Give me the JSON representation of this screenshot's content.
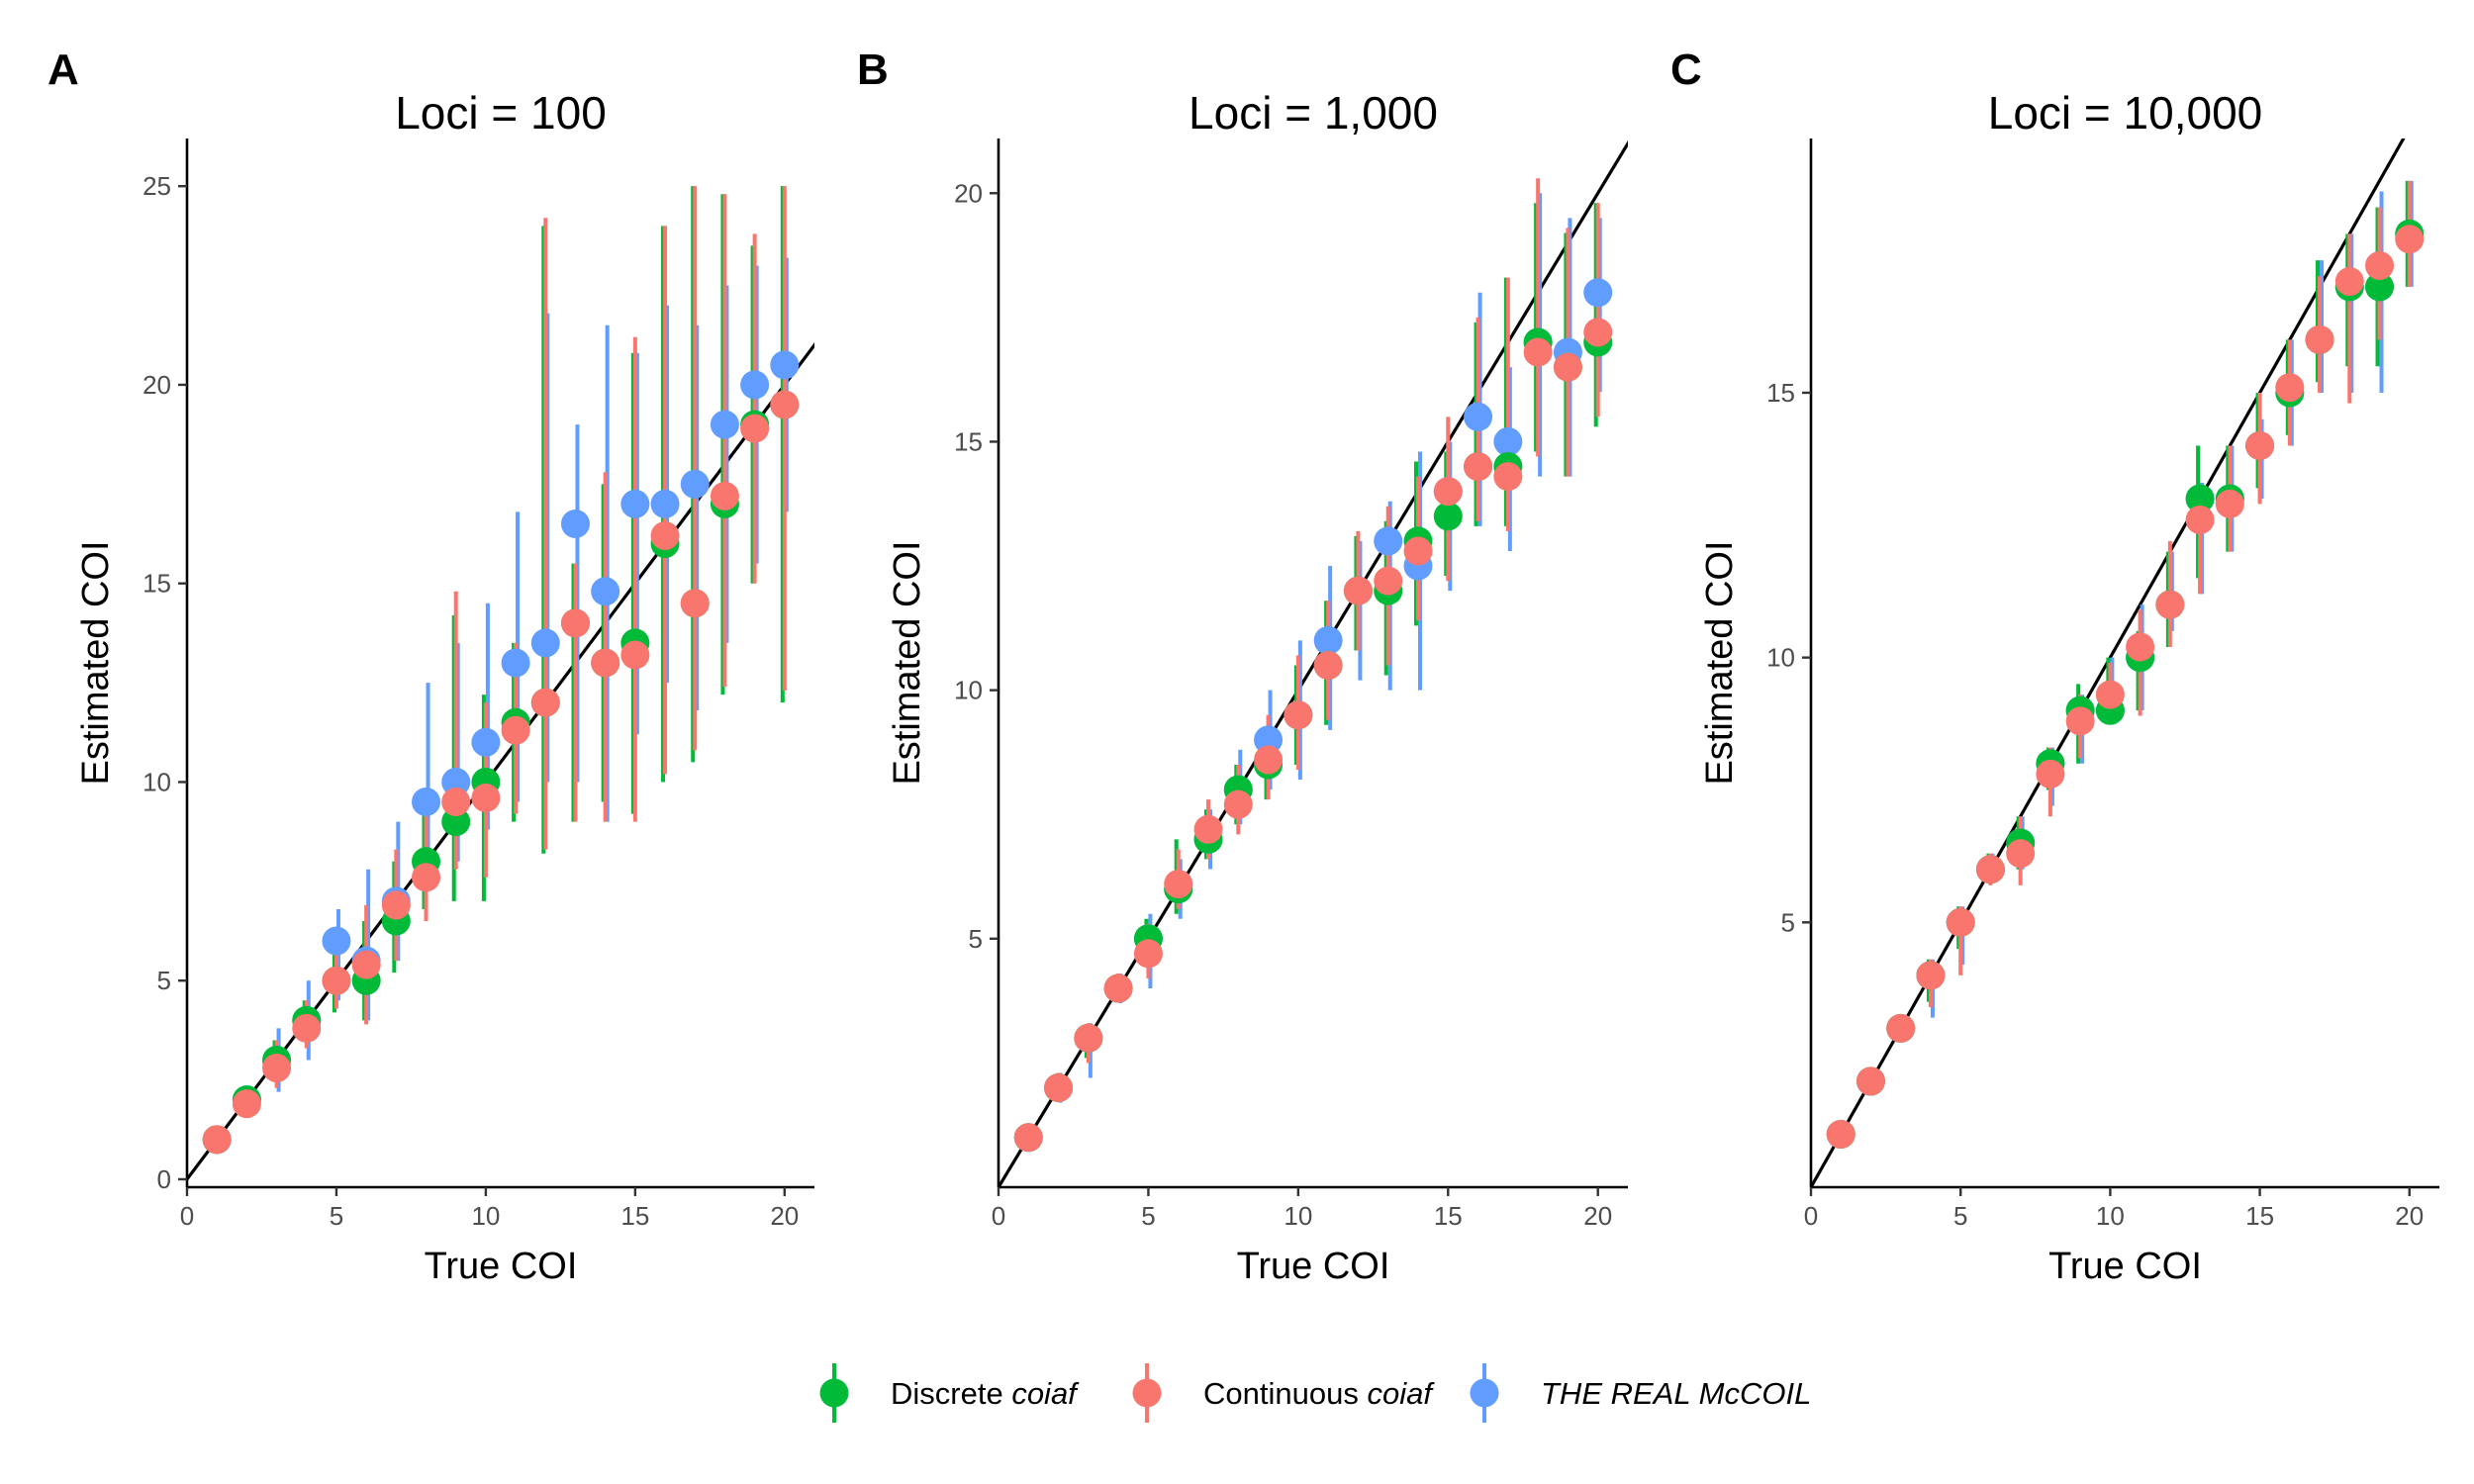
{
  "legend": {
    "items": [
      {
        "prefix": "Discrete ",
        "emph": "coiaf",
        "color": "#00BA38"
      },
      {
        "prefix": "Continuous ",
        "emph": "coiaf",
        "color": "#F8766D"
      },
      {
        "prefix": "",
        "emph": "THE REAL McCOIL",
        "color": "#619CFF"
      }
    ]
  },
  "chart_data": [
    {
      "type": "scatter",
      "panel_letter": "A",
      "title": "Loci = 100",
      "xlabel": "True COI",
      "ylabel": "Estimated COI",
      "xlim": [
        0,
        21
      ],
      "ylim": [
        -0.2,
        26.2
      ],
      "xticks": [
        0,
        5,
        10,
        15,
        20
      ],
      "yticks": [
        0,
        5,
        10,
        15,
        20,
        25
      ],
      "identity_line": true,
      "grid": false,
      "legend_position": "bottom",
      "x": [
        1,
        2,
        3,
        4,
        5,
        6,
        7,
        8,
        9,
        10,
        11,
        12,
        13,
        14,
        15,
        16,
        17,
        18,
        19,
        20
      ],
      "series": [
        {
          "name": "Discrete coiaf",
          "color": "#00BA38",
          "values": [
            1,
            2,
            3,
            4,
            5,
            5,
            6.5,
            8,
            9,
            10,
            11.5,
            12,
            14,
            13,
            13.5,
            16,
            14.5,
            17,
            19,
            19.5
          ],
          "lower": [
            1,
            2,
            2.5,
            3.5,
            4.2,
            4,
            5.2,
            6.8,
            7,
            7,
            9,
            8.2,
            9,
            9.5,
            9.2,
            10,
            10.5,
            12.2,
            15,
            12
          ],
          "upper": [
            1,
            2,
            3.5,
            4.5,
            5.8,
            6.5,
            8,
            9.8,
            14.2,
            12.2,
            13.5,
            24,
            15.5,
            17.5,
            20.8,
            24,
            25,
            24.8,
            23.5,
            25
          ]
        },
        {
          "name": "Continuous coiaf",
          "color": "#F8766D",
          "values": [
            1,
            1.9,
            2.8,
            3.8,
            5,
            5.4,
            6.9,
            7.6,
            9.5,
            9.6,
            11.3,
            12,
            14,
            13,
            13.2,
            16.2,
            14.5,
            17.2,
            18.9,
            19.5
          ],
          "lower": [
            1,
            1.6,
            2.3,
            3.3,
            4.3,
            3.9,
            5.5,
            6.5,
            7.8,
            7.6,
            9.2,
            8.3,
            9,
            9,
            9,
            10.2,
            10.8,
            12.4,
            15,
            12.3
          ],
          "upper": [
            1,
            2.2,
            3.5,
            4.5,
            5.9,
            6.9,
            8.3,
            9.5,
            14.8,
            12,
            13.5,
            24.2,
            15.5,
            17.8,
            21.2,
            24,
            25,
            24.8,
            23.8,
            25
          ]
        },
        {
          "name": "THE REAL McCOIL",
          "color": "#619CFF",
          "values": [
            1,
            2,
            3,
            4,
            6,
            5.5,
            7,
            9.5,
            10,
            11,
            13,
            13.5,
            16.5,
            14.8,
            17,
            17,
            17.5,
            19,
            20,
            20.5
          ],
          "lower": [
            1,
            1.8,
            2.2,
            3,
            4.5,
            4,
            5.5,
            7.5,
            8,
            8.8,
            9.5,
            10,
            10,
            9,
            11.2,
            12.5,
            11.8,
            13.5,
            15.5,
            16.8
          ],
          "upper": [
            1,
            2.2,
            3.8,
            5,
            6.8,
            7.8,
            9,
            12.5,
            13.5,
            14.5,
            16.8,
            21.8,
            19,
            21.5,
            20.8,
            22,
            21.5,
            22.5,
            23,
            23.2
          ]
        }
      ]
    },
    {
      "type": "scatter",
      "panel_letter": "B",
      "title": "Loci = 1,000",
      "xlabel": "True COI",
      "ylabel": "Estimated COI",
      "xlim": [
        0,
        21
      ],
      "ylim": [
        0,
        21.1
      ],
      "xticks": [
        0,
        5,
        10,
        15,
        20
      ],
      "yticks": [
        5,
        10,
        15,
        20
      ],
      "identity_line": true,
      "grid": false,
      "legend_position": "bottom",
      "x": [
        1,
        2,
        3,
        4,
        5,
        6,
        7,
        8,
        9,
        10,
        11,
        12,
        13,
        14,
        15,
        16,
        17,
        18,
        19,
        20
      ],
      "series": [
        {
          "name": "Discrete coiaf",
          "color": "#00BA38",
          "values": [
            1,
            2,
            3,
            4,
            5,
            6,
            7,
            8,
            8.5,
            9.5,
            10.5,
            12,
            12,
            13,
            13.5,
            14.5,
            14.5,
            17,
            16.5,
            17
          ],
          "lower": [
            1,
            2,
            2.6,
            4,
            4.5,
            5.5,
            6.6,
            7.3,
            7.8,
            8.5,
            9.3,
            10.8,
            10.3,
            11.3,
            12.3,
            13.3,
            13.3,
            14.8,
            14.3,
            15.3
          ],
          "upper": [
            1,
            2,
            3.2,
            4,
            5.4,
            7,
            7.6,
            8.5,
            9.2,
            10.5,
            11.8,
            13.1,
            13.4,
            14.6,
            14.8,
            17.4,
            18.3,
            19.8,
            19.2,
            19.8
          ]
        },
        {
          "name": "Continuous coiaf",
          "color": "#F8766D",
          "values": [
            1,
            2,
            3,
            4,
            4.7,
            6.1,
            7.2,
            7.7,
            8.6,
            9.5,
            10.5,
            12,
            12.2,
            12.8,
            14,
            14.5,
            14.3,
            16.8,
            16.5,
            17.2
          ],
          "lower": [
            1,
            1.8,
            2.5,
            3.8,
            4.2,
            5.6,
            6.6,
            7.1,
            7.8,
            8.4,
            9.4,
            10.8,
            10.5,
            11.4,
            12.2,
            13.4,
            13.2,
            14.7,
            14.3,
            15.5
          ],
          "upper": [
            1,
            2.3,
            3.3,
            4.3,
            5.3,
            6.8,
            7.8,
            8.5,
            9.5,
            10.7,
            11.8,
            13.2,
            13.7,
            14.3,
            15.5,
            17.5,
            18.3,
            20.3,
            19.3,
            19.8
          ]
        },
        {
          "name": "THE REAL McCOIL",
          "color": "#619CFF",
          "values": [
            1,
            2,
            3,
            4,
            5,
            6,
            7,
            8,
            9,
            9.5,
            11,
            12,
            13,
            12.5,
            14,
            15.5,
            15,
            17,
            16.8,
            18
          ],
          "lower": [
            1,
            1.7,
            2.2,
            3.7,
            4,
            5.4,
            6.4,
            7.3,
            8,
            8.2,
            9.2,
            10.2,
            10,
            10,
            12,
            13.3,
            12.8,
            14.3,
            14.3,
            16
          ],
          "upper": [
            1,
            2.3,
            3.3,
            4.3,
            5.5,
            6.6,
            7.6,
            8.8,
            10,
            11,
            12.5,
            13,
            13.8,
            14.8,
            15,
            18,
            16.5,
            20,
            19.5,
            19.5
          ]
        }
      ]
    },
    {
      "type": "scatter",
      "panel_letter": "C",
      "title": "Loci = 10,000",
      "xlabel": "True COI",
      "ylabel": "Estimated COI",
      "xlim": [
        0,
        21
      ],
      "ylim": [
        0,
        19.8
      ],
      "xticks": [
        0,
        5,
        10,
        15,
        20
      ],
      "yticks": [
        5,
        10,
        15
      ],
      "identity_line": true,
      "grid": false,
      "legend_position": "bottom",
      "x": [
        1,
        2,
        3,
        4,
        5,
        6,
        7,
        8,
        9,
        10,
        11,
        12,
        13,
        14,
        15,
        16,
        17,
        18,
        19,
        20
      ],
      "series": [
        {
          "name": "Discrete coiaf",
          "color": "#00BA38",
          "values": [
            1,
            2,
            3,
            4,
            5,
            6,
            6.5,
            8,
            9,
            9,
            10,
            11,
            13,
            13,
            14,
            15,
            16,
            17,
            17,
            18
          ],
          "lower": [
            1,
            2,
            3,
            3.5,
            4.5,
            6,
            6,
            7.5,
            8,
            9,
            9,
            10.2,
            11.5,
            12,
            13.2,
            14.2,
            15.2,
            15.5,
            15.5,
            17
          ],
          "upper": [
            1,
            2,
            3,
            4.3,
            5.3,
            6.3,
            7,
            8.3,
            9.5,
            10,
            10.5,
            12,
            14,
            14,
            15,
            16,
            17.5,
            18,
            18.5,
            19
          ]
        },
        {
          "name": "Continuous coiaf",
          "color": "#F8766D",
          "values": [
            1,
            2,
            3,
            4,
            5,
            6,
            6.3,
            7.8,
            8.8,
            9.3,
            10.2,
            11,
            12.6,
            12.9,
            14,
            15.1,
            16,
            17.1,
            17.4,
            17.9
          ],
          "lower": [
            1,
            2,
            2.8,
            3.4,
            4,
            5.7,
            5.7,
            7,
            8.1,
            8.8,
            8.9,
            10.2,
            11.2,
            12,
            12.9,
            14,
            15,
            14.8,
            16,
            17
          ],
          "upper": [
            1,
            2,
            3.1,
            4.3,
            5.3,
            6.3,
            7,
            8.3,
            9.3,
            9.9,
            10.9,
            12.2,
            13.2,
            14,
            15,
            16,
            17.2,
            18,
            18.5,
            19
          ]
        },
        {
          "name": "THE REAL McCOIL",
          "color": "#619CFF",
          "values": [
            1,
            2,
            3,
            4,
            5,
            6,
            6.5,
            8,
            9,
            9,
            10,
            11,
            13,
            13,
            14,
            15,
            16,
            17,
            17,
            18
          ],
          "lower": [
            1,
            2,
            3,
            3.2,
            4.2,
            6,
            6,
            7.2,
            8,
            8.8,
            9,
            10.5,
            11.2,
            12,
            13,
            14,
            15,
            15,
            15,
            17
          ],
          "upper": [
            1,
            2,
            3,
            4.3,
            5.3,
            6.3,
            7,
            8.3,
            9.3,
            10,
            11,
            12,
            13.3,
            14,
            14.5,
            16,
            17.5,
            18,
            18.8,
            19
          ]
        }
      ]
    }
  ]
}
